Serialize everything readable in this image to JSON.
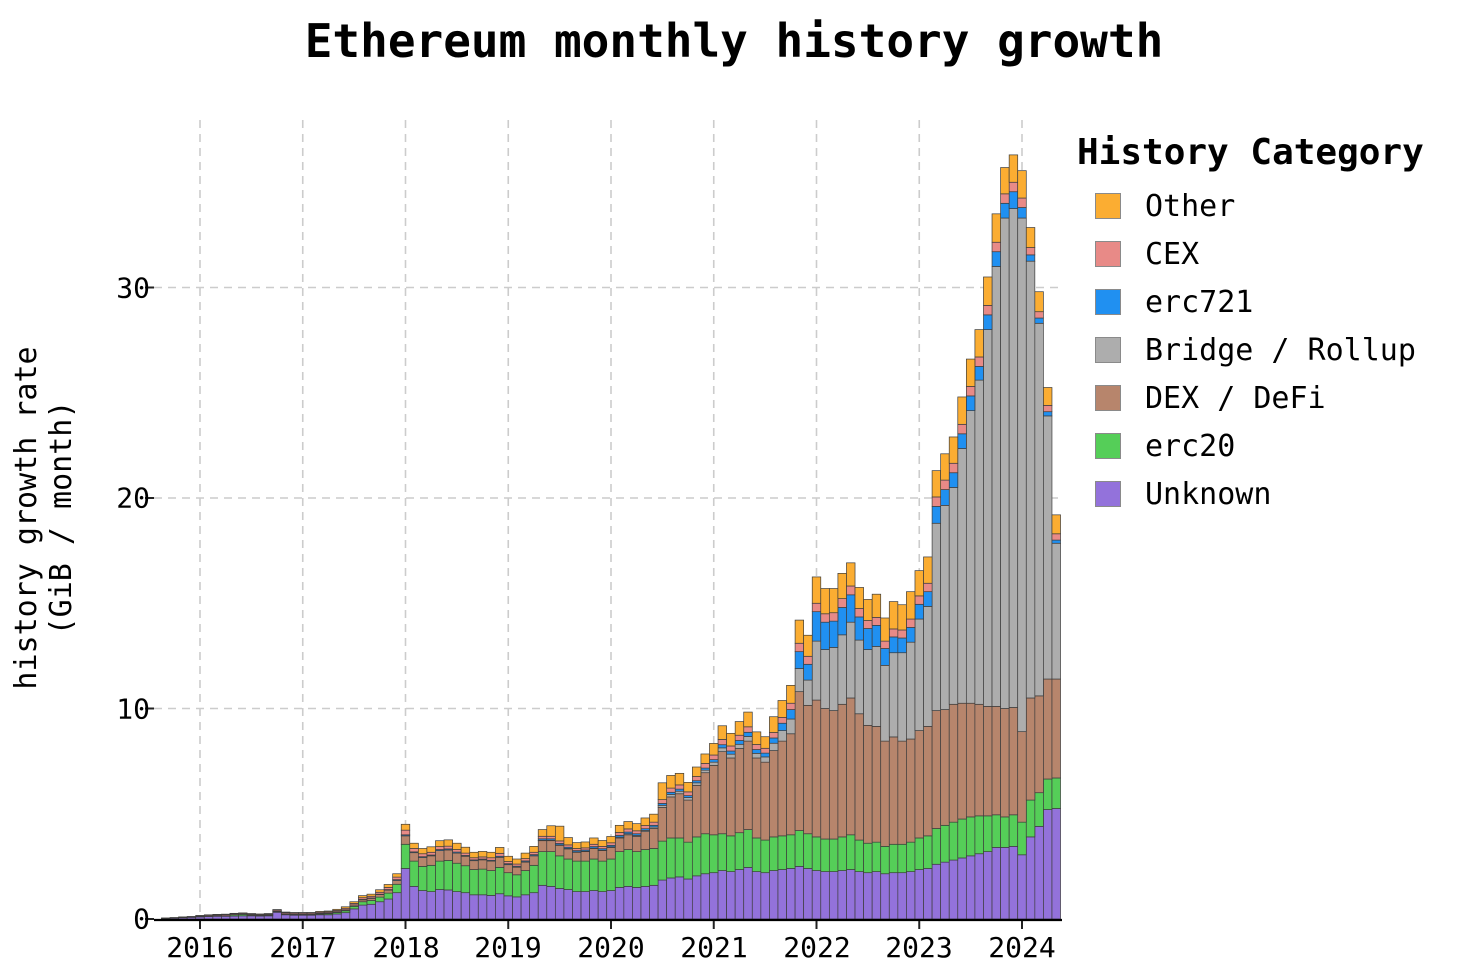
{
  "title": "Ethereum monthly history growth",
  "y_axis": {
    "label_line1": "history growth rate",
    "label_line2": "(GiB / month)",
    "ticks": [
      "0",
      "10",
      "20",
      "30"
    ]
  },
  "x_axis": {
    "ticks": [
      "2016",
      "2017",
      "2018",
      "2019",
      "2020",
      "2021",
      "2022",
      "2023",
      "2024"
    ]
  },
  "legend": {
    "title": "History Category",
    "items": [
      {
        "label": "Other",
        "color": "#FBAD32"
      },
      {
        "label": "CEX",
        "color": "#E88A87"
      },
      {
        "label": "erc721",
        "color": "#2090F1"
      },
      {
        "label": "Bridge / Rollup",
        "color": "#ADADAD"
      },
      {
        "label": "DEX / DeFi",
        "color": "#B7856C"
      },
      {
        "label": "erc20",
        "color": "#55CE58"
      },
      {
        "label": "Unknown",
        "color": "#9372DB"
      }
    ]
  },
  "chart_data": {
    "type": "bar",
    "stacked": true,
    "title": "Ethereum monthly history growth",
    "ylabel": "history growth rate (GiB / month)",
    "unit": "GiB/month",
    "ylim": [
      0,
      38
    ],
    "y_ticks": [
      0,
      10,
      20,
      30
    ],
    "x_ticks": [
      2016,
      2017,
      2018,
      2019,
      2020,
      2021,
      2022,
      2023,
      2024
    ],
    "grid": true,
    "legend_position": "upper right outside",
    "legend_order_top_to_bottom": [
      "Other",
      "CEX",
      "erc721",
      "Bridge / Rollup",
      "DEX / DeFi",
      "erc20",
      "Unknown"
    ],
    "months": [
      "2015-09",
      "2015-10",
      "2015-11",
      "2015-12",
      "2016-01",
      "2016-02",
      "2016-03",
      "2016-04",
      "2016-05",
      "2016-06",
      "2016-07",
      "2016-08",
      "2016-09",
      "2016-10",
      "2016-11",
      "2016-12",
      "2017-01",
      "2017-02",
      "2017-03",
      "2017-04",
      "2017-05",
      "2017-06",
      "2017-07",
      "2017-08",
      "2017-09",
      "2017-10",
      "2017-11",
      "2017-12",
      "2018-01",
      "2018-02",
      "2018-03",
      "2018-04",
      "2018-05",
      "2018-06",
      "2018-07",
      "2018-08",
      "2018-09",
      "2018-10",
      "2018-11",
      "2018-12",
      "2019-01",
      "2019-02",
      "2019-03",
      "2019-04",
      "2019-05",
      "2019-06",
      "2019-07",
      "2019-08",
      "2019-09",
      "2019-10",
      "2019-11",
      "2019-12",
      "2020-01",
      "2020-02",
      "2020-03",
      "2020-04",
      "2020-05",
      "2020-06",
      "2020-07",
      "2020-08",
      "2020-09",
      "2020-10",
      "2020-11",
      "2020-12",
      "2021-01",
      "2021-02",
      "2021-03",
      "2021-04",
      "2021-05",
      "2021-06",
      "2021-07",
      "2021-08",
      "2021-09",
      "2021-10",
      "2021-11",
      "2021-12",
      "2022-01",
      "2022-02",
      "2022-03",
      "2022-04",
      "2022-05",
      "2022-06",
      "2022-07",
      "2022-08",
      "2022-09",
      "2022-10",
      "2022-11",
      "2022-12",
      "2023-01",
      "2023-02",
      "2023-03",
      "2023-04",
      "2023-05",
      "2023-06",
      "2023-07",
      "2023-08",
      "2023-09",
      "2023-10",
      "2023-11",
      "2023-12",
      "2024-01",
      "2024-02",
      "2024-03",
      "2024-04",
      "2024-05"
    ],
    "series": [
      {
        "key": "unknown",
        "name": "Unknown",
        "color": "#9372DB",
        "values": [
          0.03,
          0.05,
          0.06,
          0.08,
          0.1,
          0.12,
          0.13,
          0.13,
          0.14,
          0.15,
          0.15,
          0.14,
          0.15,
          0.32,
          0.2,
          0.18,
          0.18,
          0.18,
          0.2,
          0.2,
          0.24,
          0.3,
          0.48,
          0.66,
          0.7,
          0.82,
          0.95,
          1.25,
          2.4,
          1.55,
          1.35,
          1.3,
          1.4,
          1.38,
          1.3,
          1.25,
          1.15,
          1.15,
          1.12,
          1.2,
          1.1,
          1.05,
          1.15,
          1.25,
          1.6,
          1.55,
          1.45,
          1.4,
          1.3,
          1.3,
          1.35,
          1.3,
          1.35,
          1.5,
          1.55,
          1.5,
          1.55,
          1.6,
          1.85,
          1.95,
          2.0,
          1.9,
          2.05,
          2.15,
          2.2,
          2.3,
          2.25,
          2.35,
          2.45,
          2.25,
          2.2,
          2.3,
          2.35,
          2.4,
          2.5,
          2.4,
          2.3,
          2.25,
          2.25,
          2.3,
          2.35,
          2.25,
          2.2,
          2.25,
          2.15,
          2.2,
          2.2,
          2.25,
          2.35,
          2.4,
          2.6,
          2.7,
          2.8,
          2.9,
          3.0,
          3.1,
          3.2,
          3.4,
          3.4,
          3.45,
          3.05,
          3.9,
          4.4,
          5.2,
          5.25
        ]
      },
      {
        "key": "erc20",
        "name": "erc20",
        "color": "#55CE58",
        "values": [
          0,
          0,
          0.01,
          0.01,
          0.01,
          0.01,
          0.02,
          0.02,
          0.06,
          0.07,
          0.04,
          0.03,
          0.03,
          0.03,
          0.03,
          0.03,
          0.03,
          0.03,
          0.04,
          0.05,
          0.07,
          0.09,
          0.12,
          0.16,
          0.18,
          0.22,
          0.28,
          0.4,
          1.15,
          1.2,
          1.15,
          1.25,
          1.35,
          1.4,
          1.35,
          1.28,
          1.2,
          1.22,
          1.18,
          1.25,
          1.1,
          1.05,
          1.15,
          1.3,
          1.6,
          1.65,
          1.55,
          1.45,
          1.45,
          1.45,
          1.5,
          1.45,
          1.5,
          1.7,
          1.75,
          1.7,
          1.75,
          1.75,
          1.85,
          1.9,
          1.85,
          1.75,
          1.85,
          1.9,
          1.8,
          1.75,
          1.7,
          1.75,
          1.8,
          1.6,
          1.55,
          1.6,
          1.6,
          1.6,
          1.7,
          1.65,
          1.6,
          1.55,
          1.55,
          1.6,
          1.65,
          1.5,
          1.4,
          1.4,
          1.3,
          1.35,
          1.35,
          1.4,
          1.5,
          1.55,
          1.7,
          1.75,
          1.8,
          1.85,
          1.85,
          1.8,
          1.7,
          1.55,
          1.45,
          1.5,
          1.55,
          1.75,
          1.6,
          1.45,
          1.45
        ]
      },
      {
        "key": "dex_defi",
        "name": "DEX / DeFi",
        "color": "#B7856C",
        "values": [
          0,
          0,
          0,
          0,
          0.01,
          0.01,
          0.01,
          0.01,
          0.01,
          0.01,
          0.01,
          0.01,
          0.02,
          0.02,
          0.02,
          0.02,
          0.02,
          0.02,
          0.02,
          0.03,
          0.03,
          0.04,
          0.06,
          0.09,
          0.1,
          0.12,
          0.14,
          0.18,
          0.4,
          0.4,
          0.42,
          0.45,
          0.5,
          0.5,
          0.48,
          0.45,
          0.42,
          0.44,
          0.45,
          0.48,
          0.38,
          0.36,
          0.4,
          0.45,
          0.52,
          0.52,
          0.5,
          0.48,
          0.42,
          0.45,
          0.5,
          0.5,
          0.55,
          0.65,
          0.7,
          0.72,
          0.85,
          0.95,
          1.6,
          1.95,
          2.1,
          2.0,
          2.45,
          2.9,
          3.3,
          3.9,
          3.7,
          4.0,
          4.2,
          3.8,
          3.7,
          4.1,
          4.5,
          4.8,
          6.6,
          6.1,
          6.5,
          6.2,
          6.1,
          6.3,
          6.5,
          6.0,
          5.6,
          5.5,
          5.0,
          5.1,
          4.9,
          4.9,
          5.1,
          5.2,
          5.6,
          5.5,
          5.6,
          5.5,
          5.4,
          5.3,
          5.2,
          5.15,
          5.15,
          5.1,
          4.3,
          4.85,
          4.6,
          4.75,
          4.7
        ]
      },
      {
        "key": "bridge_rollup",
        "name": "Bridge / Rollup",
        "color": "#ADADAD",
        "values": [
          0,
          0,
          0,
          0,
          0,
          0,
          0,
          0,
          0,
          0,
          0,
          0,
          0,
          0,
          0,
          0,
          0,
          0,
          0,
          0,
          0,
          0,
          0,
          0,
          0,
          0,
          0,
          0,
          0,
          0,
          0,
          0,
          0,
          0,
          0,
          0,
          0,
          0,
          0,
          0,
          0.01,
          0.01,
          0.01,
          0.01,
          0.02,
          0.02,
          0.02,
          0.02,
          0.02,
          0.02,
          0.02,
          0.02,
          0.03,
          0.04,
          0.05,
          0.05,
          0.06,
          0.07,
          0.1,
          0.12,
          0.12,
          0.12,
          0.12,
          0.12,
          0.15,
          0.18,
          0.18,
          0.2,
          0.22,
          0.22,
          0.25,
          0.35,
          0.5,
          0.7,
          1.1,
          1.2,
          2.8,
          2.8,
          3.0,
          3.3,
          3.6,
          3.5,
          3.6,
          3.8,
          3.6,
          4.0,
          4.2,
          4.6,
          5.3,
          5.7,
          8.9,
          9.7,
          10.3,
          12.1,
          13.9,
          15.4,
          17.9,
          20.9,
          23.3,
          23.7,
          24.4,
          20.75,
          17.7,
          12.5,
          6.45
        ]
      },
      {
        "key": "erc721",
        "name": "erc721",
        "color": "#2090F1",
        "values": [
          0,
          0,
          0,
          0,
          0,
          0,
          0,
          0,
          0,
          0,
          0,
          0,
          0,
          0,
          0,
          0,
          0,
          0,
          0.01,
          0.01,
          0.01,
          0.01,
          0.01,
          0.02,
          0.02,
          0.02,
          0.03,
          0.04,
          0.05,
          0.04,
          0.04,
          0.04,
          0.05,
          0.05,
          0.05,
          0.04,
          0.04,
          0.04,
          0.04,
          0.05,
          0.04,
          0.04,
          0.05,
          0.05,
          0.07,
          0.07,
          0.07,
          0.06,
          0.06,
          0.06,
          0.07,
          0.07,
          0.07,
          0.08,
          0.08,
          0.08,
          0.08,
          0.08,
          0.09,
          0.1,
          0.1,
          0.09,
          0.1,
          0.1,
          0.12,
          0.15,
          0.15,
          0.18,
          0.2,
          0.18,
          0.18,
          0.25,
          0.35,
          0.45,
          0.8,
          0.75,
          1.4,
          1.3,
          1.25,
          1.3,
          1.3,
          1.1,
          1.0,
          1.0,
          0.8,
          0.75,
          0.7,
          0.7,
          0.7,
          0.7,
          0.8,
          0.75,
          0.7,
          0.7,
          0.7,
          0.65,
          0.7,
          0.7,
          0.7,
          0.8,
          0.5,
          0.3,
          0.25,
          0.2,
          0.15
        ]
      },
      {
        "key": "cex",
        "name": "CEX",
        "color": "#E88A87",
        "values": [
          0.01,
          0.01,
          0.02,
          0.02,
          0.03,
          0.04,
          0.04,
          0.05,
          0.04,
          0.04,
          0.04,
          0.04,
          0.04,
          0.05,
          0.05,
          0.05,
          0.05,
          0.05,
          0.05,
          0.05,
          0.06,
          0.07,
          0.07,
          0.08,
          0.08,
          0.09,
          0.1,
          0.12,
          0.22,
          0.16,
          0.14,
          0.13,
          0.14,
          0.13,
          0.12,
          0.11,
          0.1,
          0.1,
          0.12,
          0.14,
          0.1,
          0.1,
          0.11,
          0.11,
          0.12,
          0.12,
          0.12,
          0.11,
          0.1,
          0.1,
          0.11,
          0.11,
          0.12,
          0.14,
          0.15,
          0.14,
          0.15,
          0.15,
          0.18,
          0.2,
          0.2,
          0.18,
          0.2,
          0.22,
          0.22,
          0.25,
          0.24,
          0.25,
          0.26,
          0.24,
          0.23,
          0.26,
          0.28,
          0.3,
          0.4,
          0.38,
          0.4,
          0.4,
          0.4,
          0.42,
          0.42,
          0.4,
          0.38,
          0.38,
          0.35,
          0.38,
          0.38,
          0.4,
          0.4,
          0.4,
          0.45,
          0.45,
          0.45,
          0.45,
          0.45,
          0.45,
          0.45,
          0.45,
          0.45,
          0.45,
          0.45,
          0.35,
          0.3,
          0.3,
          0.3
        ]
      },
      {
        "key": "other",
        "name": "Other",
        "color": "#FBAD32",
        "values": [
          0.01,
          0.01,
          0.01,
          0.01,
          0.02,
          0.02,
          0.02,
          0.02,
          0.02,
          0.02,
          0.02,
          0.02,
          0.02,
          0.03,
          0.03,
          0.03,
          0.03,
          0.03,
          0.04,
          0.04,
          0.05,
          0.07,
          0.08,
          0.1,
          0.1,
          0.12,
          0.14,
          0.16,
          0.28,
          0.25,
          0.25,
          0.26,
          0.28,
          0.3,
          0.3,
          0.28,
          0.26,
          0.26,
          0.26,
          0.28,
          0.25,
          0.24,
          0.26,
          0.28,
          0.32,
          0.5,
          0.7,
          0.35,
          0.28,
          0.28,
          0.3,
          0.28,
          0.3,
          0.34,
          0.35,
          0.34,
          0.36,
          0.38,
          0.8,
          0.6,
          0.55,
          0.45,
          0.45,
          0.45,
          0.55,
          0.65,
          0.6,
          0.65,
          0.7,
          0.6,
          0.55,
          0.75,
          0.8,
          0.85,
          1.1,
          1.0,
          1.25,
          1.2,
          1.15,
          1.2,
          1.1,
          1.0,
          1.0,
          1.1,
          1.1,
          1.3,
          1.2,
          1.3,
          1.2,
          1.25,
          1.25,
          1.25,
          1.25,
          1.3,
          1.3,
          1.3,
          1.35,
          1.35,
          1.25,
          1.3,
          1.3,
          0.95,
          0.95,
          0.85,
          0.9
        ]
      }
    ]
  }
}
